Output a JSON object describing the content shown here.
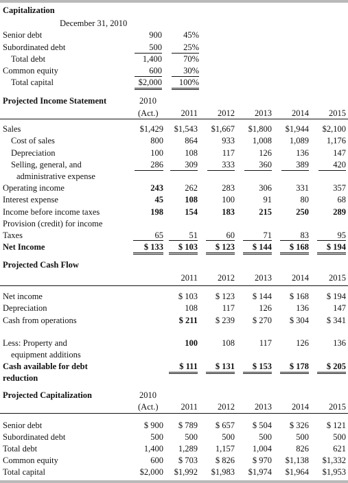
{
  "capitalization": {
    "title": "Capitalization",
    "date": "December 31, 2010",
    "rows": [
      {
        "label": "Senior debt",
        "amount": "900",
        "pct": "45%"
      },
      {
        "label": "Subordinated debt",
        "amount": "500",
        "pct": "25%"
      },
      {
        "label": "Total debt",
        "amount": "1,400",
        "pct": "70%"
      },
      {
        "label": "Common equity",
        "amount": "600",
        "pct": "30%"
      },
      {
        "label": "Total capital",
        "amount": "$2,000",
        "pct": "100%"
      }
    ]
  },
  "income": {
    "title": "Projected Income Statement",
    "year0": "2010",
    "act": "(Act.)",
    "years": [
      "2011",
      "2012",
      "2013",
      "2014",
      "2015"
    ],
    "rows": [
      {
        "label": "Sales",
        "v": [
          "$1,429",
          "$1,543",
          "$1,667",
          "$1,800",
          "$1,944",
          "$2,100"
        ]
      },
      {
        "label": "Cost of sales",
        "v": [
          "800",
          "864",
          "933",
          "1,008",
          "1,089",
          "1,176"
        ]
      },
      {
        "label": "Depreciation",
        "v": [
          "100",
          "108",
          "117",
          "126",
          "136",
          "147"
        ]
      },
      {
        "label": "Selling, general, and",
        "label2": "administrative expense",
        "v": [
          "286",
          "309",
          "333",
          "360",
          "389",
          "420"
        ]
      },
      {
        "label": "Operating income",
        "v": [
          "243",
          "262",
          "283",
          "306",
          "331",
          "357"
        ]
      },
      {
        "label": "Interest expense",
        "v": [
          "45",
          "108",
          "100",
          "91",
          "80",
          "68"
        ]
      },
      {
        "label": "Income before income taxes",
        "v": [
          "198",
          "154",
          "183",
          "215",
          "250",
          "289"
        ]
      },
      {
        "label": "Provision (credit) for income",
        "label2": "Taxes",
        "v": [
          "65",
          "51",
          "60",
          "71",
          "83",
          "95"
        ]
      },
      {
        "label": "Net Income",
        "v": [
          "$ 133",
          "$ 103",
          "$ 123",
          "$ 144",
          "$ 168",
          "$ 194"
        ]
      }
    ]
  },
  "cashflow": {
    "title": "Projected Cash Flow",
    "years": [
      "2011",
      "2012",
      "2013",
      "2014",
      "2015"
    ],
    "rows": [
      {
        "label": "Net income",
        "v": [
          "$ 103",
          "$ 123",
          "$ 144",
          "$ 168",
          "$ 194"
        ]
      },
      {
        "label": "Depreciation",
        "v": [
          "108",
          "117",
          "126",
          "136",
          "147"
        ]
      },
      {
        "label": "Cash from operations",
        "v": [
          "$ 211",
          "$ 239",
          "$ 270",
          "$ 304",
          "$ 341"
        ]
      },
      {
        "label": "Less: Property and",
        "label2": "equipment additions",
        "v": [
          "100",
          "108",
          "117",
          "126",
          "136"
        ]
      },
      {
        "label": "Cash available for debt",
        "label2": "reduction",
        "v": [
          "$ 111",
          "$ 131",
          "$ 153",
          "$ 178",
          "$ 205"
        ]
      }
    ]
  },
  "projcap": {
    "title": "Projected Capitalization",
    "year0": "2010",
    "act": "(Act.)",
    "years": [
      "2011",
      "2012",
      "2013",
      "2014",
      "2015"
    ],
    "rows": [
      {
        "label": "Senior debt",
        "v": [
          "$ 900",
          "$ 789",
          "$ 657",
          "$ 504",
          "$ 326",
          "$ 121"
        ]
      },
      {
        "label": "Subordinated debt",
        "v": [
          "500",
          "500",
          "500",
          "500",
          "500",
          "500"
        ]
      },
      {
        "label": "Total debt",
        "v": [
          "1,400",
          "1,289",
          "1,157",
          "1,004",
          "826",
          "621"
        ]
      },
      {
        "label": "Common equity",
        "v": [
          "600",
          "$ 703",
          "$ 826",
          "$ 970",
          "$1,138",
          "$1,332"
        ]
      },
      {
        "label": "Total capital",
        "v": [
          "$2,000",
          "$1,992",
          "$1,983",
          "$1,974",
          "$1,964",
          "$1,953"
        ]
      }
    ]
  }
}
